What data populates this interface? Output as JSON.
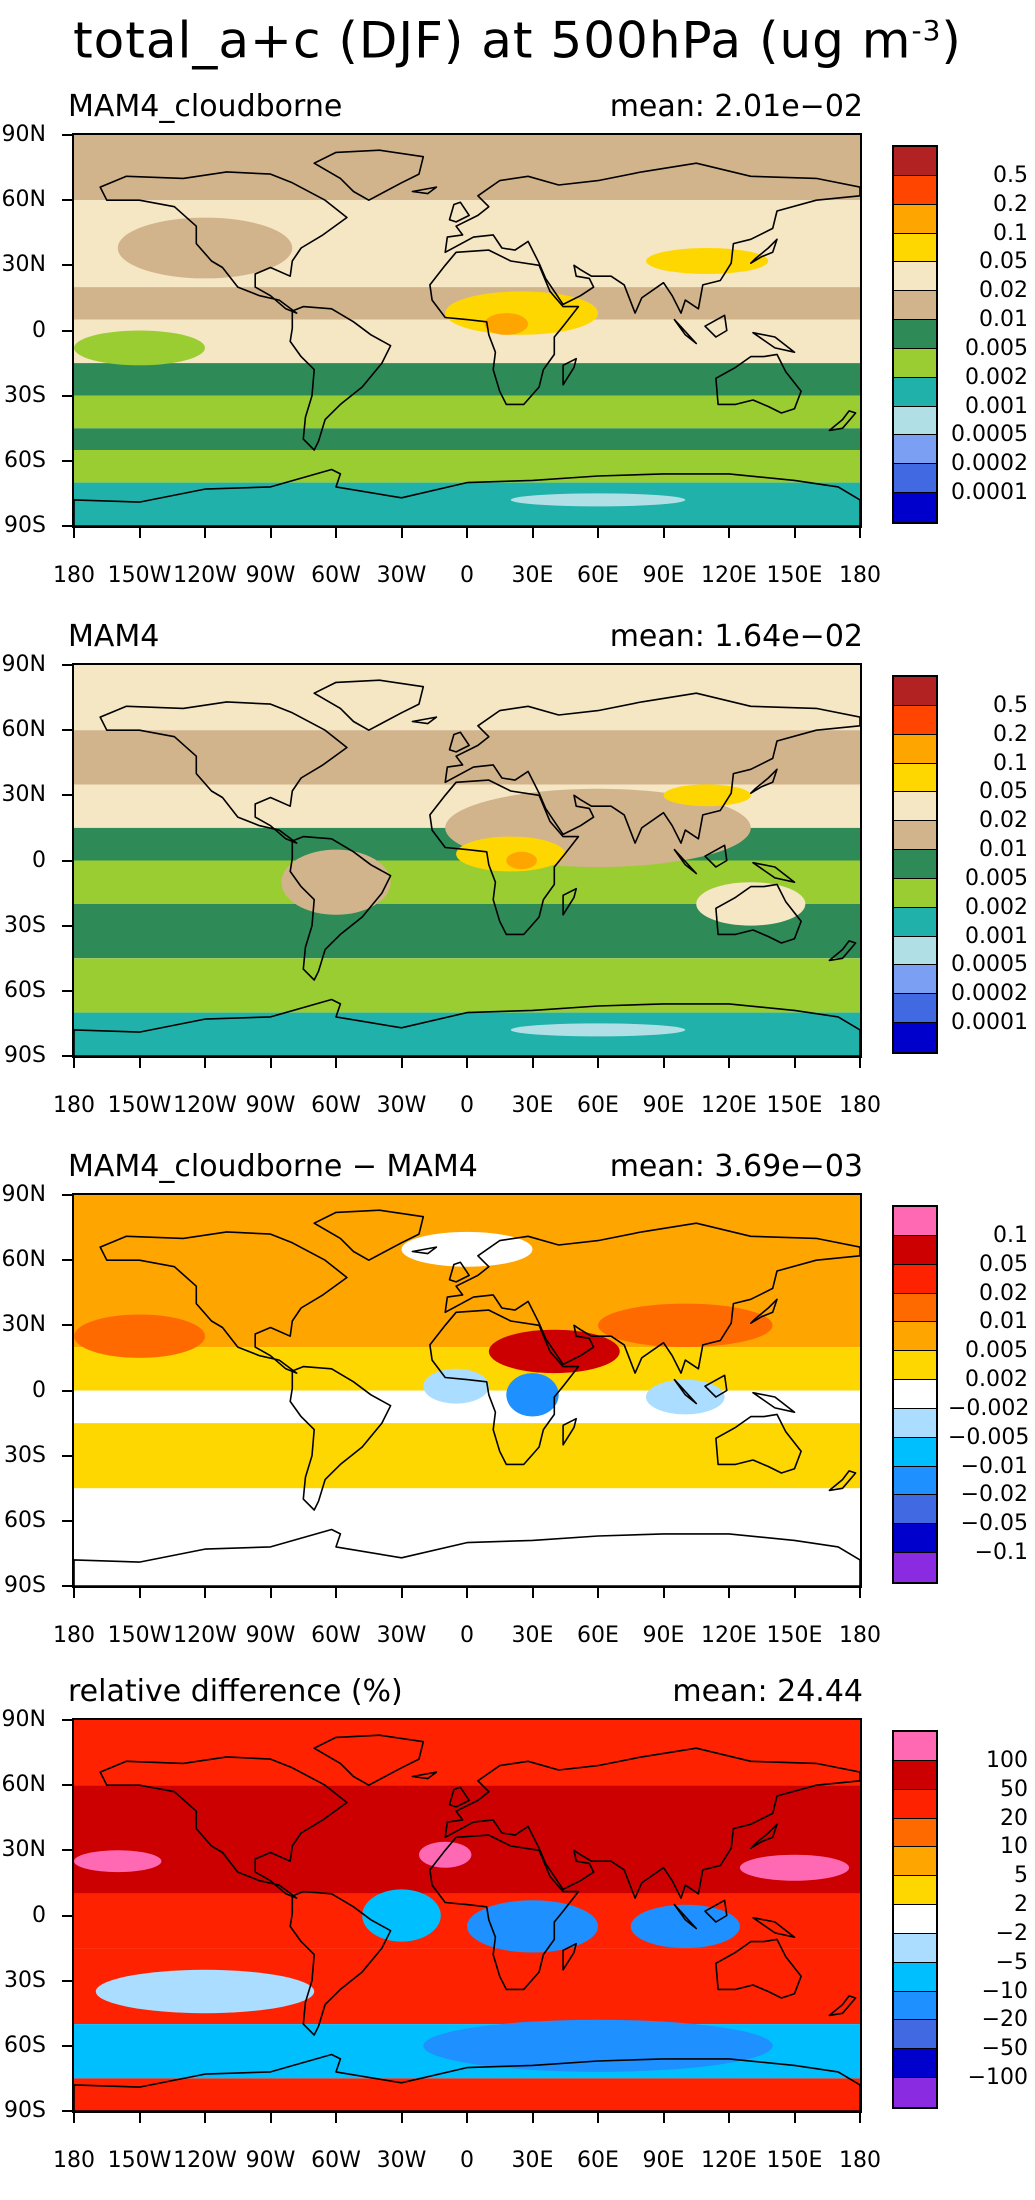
{
  "figure": {
    "title": "total_a+c (DJF) at 500hPa (ug m",
    "title_sup": "-3",
    "title_close": ")"
  },
  "axes": {
    "lat_labels": [
      "90N",
      "60N",
      "30N",
      "0",
      "30S",
      "60S",
      "90S"
    ],
    "lon_labels": [
      "180",
      "150W",
      "120W",
      "90W",
      "60W",
      "30W",
      "0",
      "30E",
      "60E",
      "90E",
      "120E",
      "150E",
      "180"
    ]
  },
  "chart_data": [
    {
      "type": "heatmap",
      "title": "MAM4_cloudborne",
      "mean_label": "mean: 2.01e−02",
      "xlim": [
        -180,
        180
      ],
      "ylim": [
        -90,
        90
      ],
      "contour_levels": [
        "0.5",
        "0.2",
        "0.1",
        "0.05",
        "0.02",
        "0.01",
        "0.005",
        "0.002",
        "0.001",
        "0.0005",
        "0.0002",
        "0.0001"
      ],
      "colors": [
        "#B22222",
        "#FF4500",
        "#FFA500",
        "#FFD700",
        "#F5E6C4",
        "#D2B48C",
        "#2E8B57",
        "#9ACD32",
        "#20B2AA",
        "#B0E0E6",
        "#7B9FF2",
        "#4169E1",
        "#0000CD"
      ],
      "bands": [
        {
          "lat": [
            60,
            90
          ],
          "color": "#D2B48C"
        },
        {
          "lat": [
            20,
            60
          ],
          "color": "#F5E6C4"
        },
        {
          "lat": [
            5,
            20
          ],
          "color": "#D2B48C"
        },
        {
          "lat": [
            -15,
            5
          ],
          "color": "#F5E6C4"
        },
        {
          "lat": [
            -30,
            -15
          ],
          "color": "#2E8B57"
        },
        {
          "lat": [
            -45,
            -30
          ],
          "color": "#9ACD32"
        },
        {
          "lat": [
            -55,
            -45
          ],
          "color": "#2E8B57"
        },
        {
          "lat": [
            -70,
            -55
          ],
          "color": "#9ACD32"
        },
        {
          "lat": [
            -90,
            -70
          ],
          "color": "#20B2AA"
        }
      ],
      "blobs": [
        {
          "lon": 25,
          "lat": 8,
          "rx": 35,
          "ry": 10,
          "color": "#FFD700"
        },
        {
          "lon": 18,
          "lat": 3,
          "rx": 10,
          "ry": 5,
          "color": "#FFA500"
        },
        {
          "lon": 110,
          "lat": 32,
          "rx": 28,
          "ry": 6,
          "color": "#FFD700"
        },
        {
          "lon": -120,
          "lat": 38,
          "rx": 40,
          "ry": 14,
          "color": "#D2B48C"
        },
        {
          "lon": -150,
          "lat": -8,
          "rx": 30,
          "ry": 8,
          "color": "#9ACD32"
        },
        {
          "lon": 60,
          "lat": -78,
          "rx": 40,
          "ry": 3,
          "color": "#B0E0E6"
        }
      ]
    },
    {
      "type": "heatmap",
      "title": "MAM4",
      "mean_label": "mean: 1.64e−02",
      "xlim": [
        -180,
        180
      ],
      "ylim": [
        -90,
        90
      ],
      "contour_levels": [
        "0.5",
        "0.2",
        "0.1",
        "0.05",
        "0.02",
        "0.01",
        "0.005",
        "0.002",
        "0.001",
        "0.0005",
        "0.0002",
        "0.0001"
      ],
      "colors": [
        "#B22222",
        "#FF4500",
        "#FFA500",
        "#FFD700",
        "#F5E6C4",
        "#D2B48C",
        "#2E8B57",
        "#9ACD32",
        "#20B2AA",
        "#B0E0E6",
        "#7B9FF2",
        "#4169E1",
        "#0000CD"
      ],
      "bands": [
        {
          "lat": [
            60,
            90
          ],
          "color": "#F5E6C4"
        },
        {
          "lat": [
            35,
            60
          ],
          "color": "#D2B48C"
        },
        {
          "lat": [
            15,
            35
          ],
          "color": "#F5E6C4"
        },
        {
          "lat": [
            0,
            15
          ],
          "color": "#2E8B57"
        },
        {
          "lat": [
            -20,
            0
          ],
          "color": "#9ACD32"
        },
        {
          "lat": [
            -45,
            -20
          ],
          "color": "#2E8B57"
        },
        {
          "lat": [
            -70,
            -45
          ],
          "color": "#9ACD32"
        },
        {
          "lat": [
            -90,
            -70
          ],
          "color": "#20B2AA"
        }
      ],
      "blobs": [
        {
          "lon": 60,
          "lat": 15,
          "rx": 70,
          "ry": 18,
          "color": "#D2B48C"
        },
        {
          "lon": 20,
          "lat": 3,
          "rx": 25,
          "ry": 8,
          "color": "#FFD700"
        },
        {
          "lon": 25,
          "lat": 0,
          "rx": 7,
          "ry": 4,
          "color": "#FFA500"
        },
        {
          "lon": 110,
          "lat": 30,
          "rx": 20,
          "ry": 5,
          "color": "#FFD700"
        },
        {
          "lon": 130,
          "lat": -20,
          "rx": 25,
          "ry": 10,
          "color": "#F5E6C4"
        },
        {
          "lon": -60,
          "lat": -10,
          "rx": 25,
          "ry": 15,
          "color": "#D2B48C"
        },
        {
          "lon": 60,
          "lat": -78,
          "rx": 40,
          "ry": 3,
          "color": "#B0E0E6"
        }
      ]
    },
    {
      "type": "heatmap",
      "title": "MAM4_cloudborne − MAM4",
      "mean_label": "mean: 3.69e−03",
      "xlim": [
        -180,
        180
      ],
      "ylim": [
        -90,
        90
      ],
      "contour_levels": [
        "0.1",
        "0.05",
        "0.02",
        "0.01",
        "0.005",
        "0.002",
        "−0.002",
        "−0.005",
        "−0.01",
        "−0.02",
        "−0.05",
        "−0.1"
      ],
      "colors": [
        "#FF69B4",
        "#CC0000",
        "#FF2200",
        "#FF6A00",
        "#FFA500",
        "#FFD700",
        "#FFFFFF",
        "#AADDFF",
        "#00BFFF",
        "#1E90FF",
        "#4169E1",
        "#0000CD",
        "#8A2BE2"
      ],
      "bands": [
        {
          "lat": [
            55,
            90
          ],
          "color": "#FFA500"
        },
        {
          "lat": [
            20,
            55
          ],
          "color": "#FFA500"
        },
        {
          "lat": [
            0,
            20
          ],
          "color": "#FFD700"
        },
        {
          "lat": [
            -15,
            0
          ],
          "color": "#FFFFFF"
        },
        {
          "lat": [
            -45,
            -15
          ],
          "color": "#FFD700"
        },
        {
          "lat": [
            -90,
            -45
          ],
          "color": "#FFFFFF"
        }
      ],
      "blobs": [
        {
          "lon": 40,
          "lat": 18,
          "rx": 30,
          "ry": 10,
          "color": "#CC0000"
        },
        {
          "lon": 30,
          "lat": -2,
          "rx": 12,
          "ry": 10,
          "color": "#1E90FF"
        },
        {
          "lon": -5,
          "lat": 2,
          "rx": 15,
          "ry": 8,
          "color": "#AADDFF"
        },
        {
          "lon": 100,
          "lat": -3,
          "rx": 18,
          "ry": 8,
          "color": "#AADDFF"
        },
        {
          "lon": 100,
          "lat": 30,
          "rx": 40,
          "ry": 10,
          "color": "#FF6A00"
        },
        {
          "lon": -150,
          "lat": 25,
          "rx": 30,
          "ry": 10,
          "color": "#FF6A00"
        },
        {
          "lon": 0,
          "lat": 65,
          "rx": 30,
          "ry": 8,
          "color": "#FFFFFF"
        }
      ]
    },
    {
      "type": "heatmap",
      "title": "relative difference (%)",
      "mean_label": "mean: 24.44",
      "xlim": [
        -180,
        180
      ],
      "ylim": [
        -90,
        90
      ],
      "contour_levels": [
        "100",
        "50",
        "20",
        "10",
        "5",
        "2",
        "−2",
        "−5",
        "−10",
        "−20",
        "−50",
        "−100"
      ],
      "colors": [
        "#FF69B4",
        "#CC0000",
        "#FF2200",
        "#FF6A00",
        "#FFA500",
        "#FFD700",
        "#FFFFFF",
        "#AADDFF",
        "#00BFFF",
        "#1E90FF",
        "#4169E1",
        "#0000CD",
        "#8A2BE2"
      ],
      "bands": [
        {
          "lat": [
            60,
            90
          ],
          "color": "#FF2200"
        },
        {
          "lat": [
            10,
            60
          ],
          "color": "#CC0000"
        },
        {
          "lat": [
            -15,
            10
          ],
          "color": "#FF2200"
        },
        {
          "lat": [
            -50,
            -15
          ],
          "color": "#FF2200"
        },
        {
          "lat": [
            -75,
            -50
          ],
          "color": "#00BFFF"
        },
        {
          "lat": [
            -90,
            -75
          ],
          "color": "#FF2200"
        }
      ],
      "blobs": [
        {
          "lon": -160,
          "lat": 25,
          "rx": 20,
          "ry": 5,
          "color": "#FF69B4"
        },
        {
          "lon": 150,
          "lat": 22,
          "rx": 25,
          "ry": 6,
          "color": "#FF69B4"
        },
        {
          "lon": -10,
          "lat": 28,
          "rx": 12,
          "ry": 6,
          "color": "#FF69B4"
        },
        {
          "lon": 30,
          "lat": -5,
          "rx": 30,
          "ry": 12,
          "color": "#1E90FF"
        },
        {
          "lon": 100,
          "lat": -5,
          "rx": 25,
          "ry": 10,
          "color": "#1E90FF"
        },
        {
          "lon": -30,
          "lat": 0,
          "rx": 18,
          "ry": 12,
          "color": "#00BFFF"
        },
        {
          "lon": -120,
          "lat": -35,
          "rx": 50,
          "ry": 10,
          "color": "#AADDFF"
        },
        {
          "lon": 60,
          "lat": -60,
          "rx": 80,
          "ry": 12,
          "color": "#1E90FF"
        }
      ]
    }
  ]
}
